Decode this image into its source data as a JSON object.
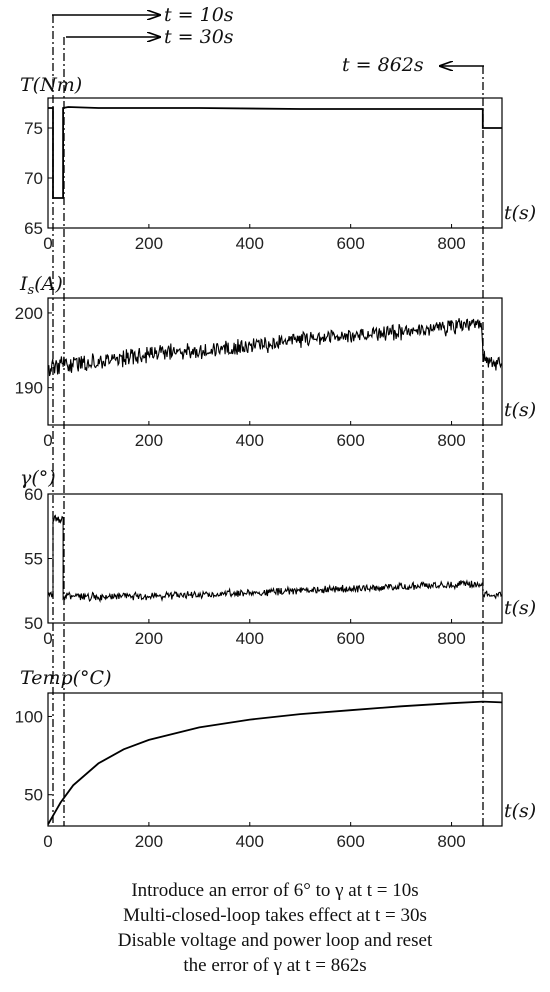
{
  "annotations": {
    "t10": "t = 10s",
    "t30": "t = 30s",
    "t862": "t = 862s"
  },
  "caption": [
    "Introduce an error of 6° to γ at t = 10s",
    "Multi-closed-loop takes effect at t = 30s",
    "Disable voltage and power loop and reset",
    "the error of γ at t = 862s"
  ],
  "chart_data": [
    {
      "type": "line",
      "ylabel": "T(Nm)",
      "xlabel": "t(s)",
      "xlim": [
        0,
        900
      ],
      "ylim": [
        65,
        78
      ],
      "xticks": [
        0,
        200,
        400,
        600,
        800
      ],
      "yticks": [
        65,
        70,
        75
      ],
      "series": [
        {
          "x": [
            0,
            8,
            10,
            10,
            30,
            30,
            40,
            100,
            300,
            500,
            700,
            862,
            862,
            868,
            900
          ],
          "y": [
            77,
            77,
            77,
            68,
            68,
            77,
            77.1,
            77.0,
            77.0,
            76.9,
            76.9,
            76.9,
            75,
            75,
            75
          ]
        }
      ]
    },
    {
      "type": "line",
      "ylabel": "Is(A)",
      "xlabel": "t(s)",
      "xlim": [
        0,
        900
      ],
      "ylim": [
        185,
        202
      ],
      "xticks": [
        0,
        200,
        400,
        600,
        800
      ],
      "yticks": [
        190,
        200
      ],
      "series": [
        {
          "x": [
            0,
            5,
            10,
            30,
            100,
            200,
            300,
            400,
            500,
            600,
            700,
            800,
            860,
            862,
            870,
            900
          ],
          "y": [
            193,
            192.5,
            193,
            193,
            193.5,
            194.5,
            195,
            195.5,
            196.5,
            197,
            197.5,
            198.2,
            198.5,
            194.5,
            193.5,
            193
          ],
          "noise": 1.3
        }
      ]
    },
    {
      "type": "line",
      "ylabel": "γ(°)",
      "xlabel": "t(s)",
      "xlim": [
        0,
        900
      ],
      "ylim": [
        50,
        60
      ],
      "xticks": [
        0,
        200,
        400,
        600,
        800
      ],
      "yticks": [
        50,
        55,
        60
      ],
      "series": [
        {
          "x": [
            0,
            10,
            10,
            30,
            30,
            100,
            300,
            500,
            700,
            862,
            862,
            900
          ],
          "y": [
            52.2,
            52.2,
            58.1,
            58.1,
            52.1,
            52.0,
            52.2,
            52.5,
            52.8,
            53.1,
            52.3,
            52.2
          ],
          "noise": 0.35
        }
      ]
    },
    {
      "type": "line",
      "ylabel": "Temp(°C)",
      "xlabel": "t(s)",
      "xlim": [
        0,
        900
      ],
      "ylim": [
        30,
        115
      ],
      "xticks": [
        0,
        200,
        400,
        600,
        800
      ],
      "yticks": [
        50,
        100
      ],
      "series": [
        {
          "x": [
            0,
            25,
            50,
            100,
            150,
            200,
            300,
            400,
            500,
            600,
            700,
            800,
            862,
            900
          ],
          "y": [
            31,
            45,
            56,
            70,
            79,
            85,
            93,
            98,
            101.5,
            104,
            106.5,
            108.5,
            109.5,
            109
          ]
        }
      ]
    }
  ]
}
